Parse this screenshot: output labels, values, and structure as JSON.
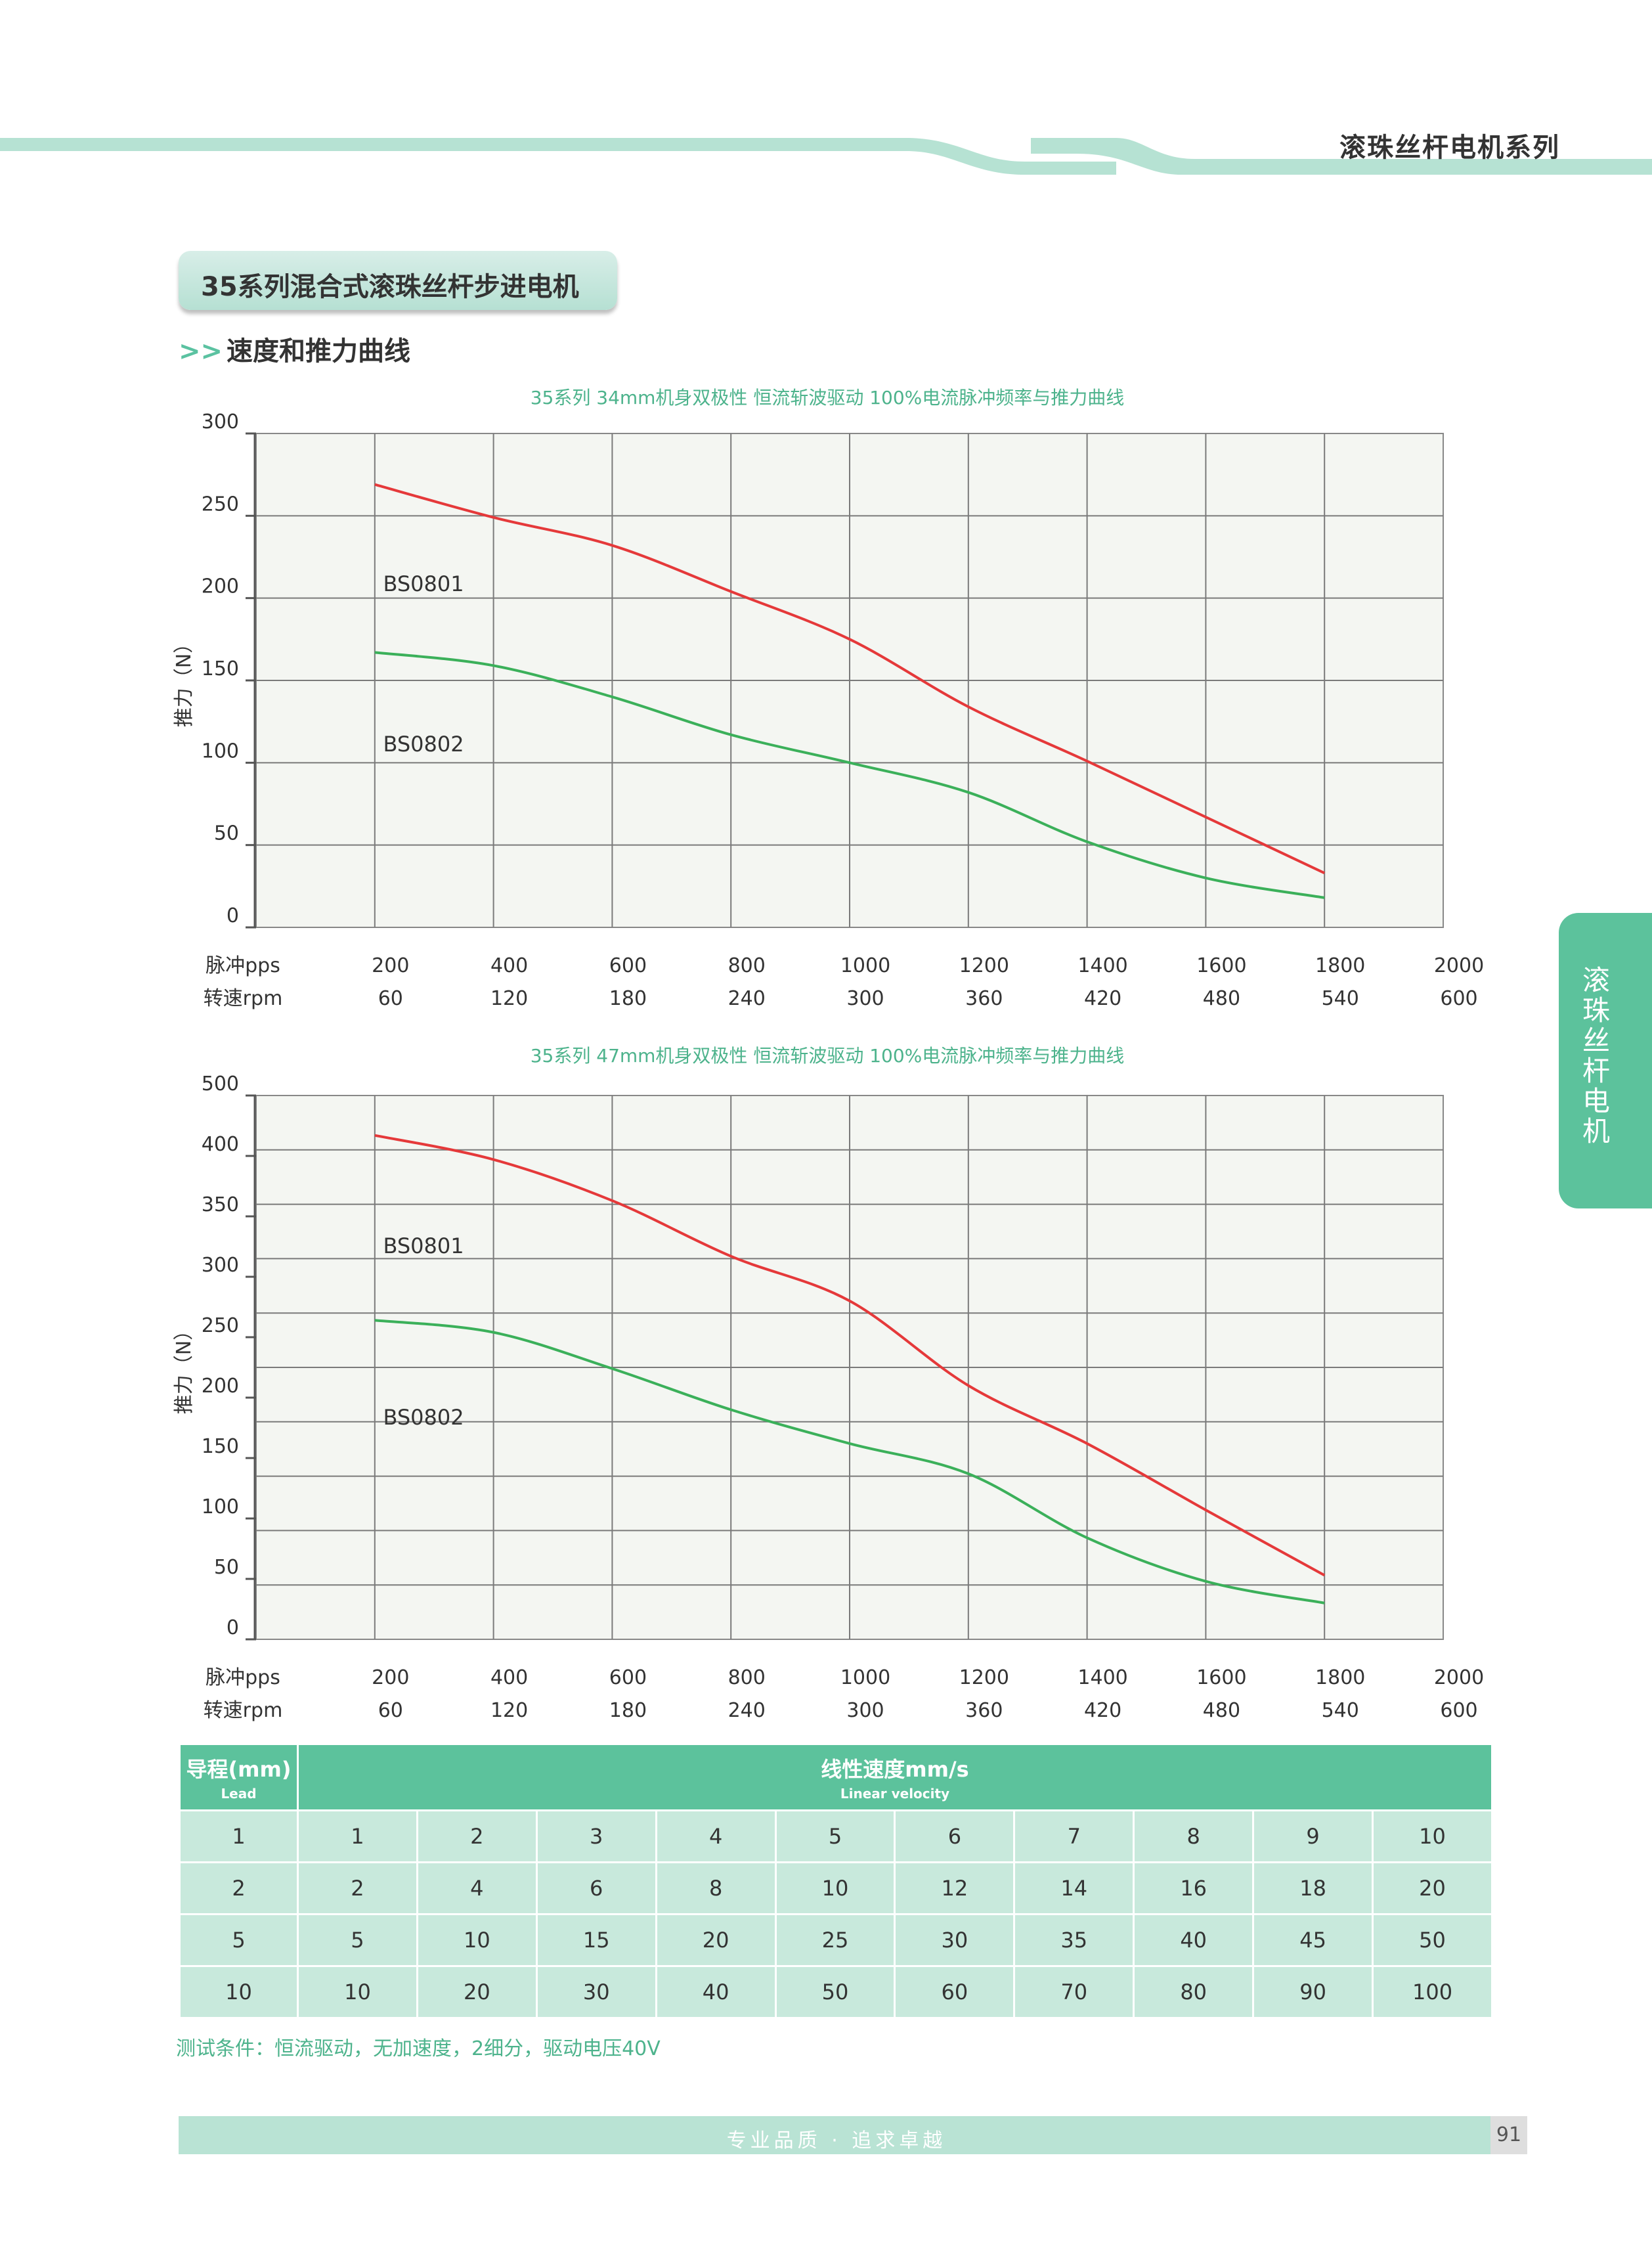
{
  "header": {
    "series_title": "滚珠丝杆电机系列"
  },
  "section": {
    "title": "35系列混合式滚珠丝杆步进电机",
    "subtitle_arrows": ">>",
    "subtitle": "速度和推力曲线"
  },
  "side_tab": {
    "label": "滚珠丝杆电机"
  },
  "chart_data": [
    {
      "type": "line",
      "title": "35系列 34mm机身双极性 恒流斩波驱动 100%电流脉冲频率与推力曲线",
      "ylabel": "推力（N）",
      "x_label_pps": "脉冲pps",
      "x_label_rpm": "转速rpm",
      "x_ticks_pps": [
        "200",
        "400",
        "600",
        "800",
        "1000",
        "1200",
        "1400",
        "1600",
        "1800",
        "2000"
      ],
      "x_ticks_rpm": [
        "60",
        "120",
        "180",
        "240",
        "300",
        "360",
        "420",
        "480",
        "540",
        "600"
      ],
      "xlim": [
        0,
        2000
      ],
      "ylim": [
        0,
        300
      ],
      "y_ticks": [
        0,
        50,
        100,
        150,
        200,
        250,
        300
      ],
      "grid": true,
      "series": [
        {
          "name": "BS0801",
          "color": "#e5393a",
          "x": [
            200,
            400,
            600,
            800,
            1000,
            1200,
            1400,
            1600,
            1800
          ],
          "y": [
            269,
            249,
            232,
            204,
            175,
            134,
            101,
            67,
            33
          ]
        },
        {
          "name": "BS0802",
          "color": "#3bb05a",
          "x": [
            200,
            400,
            600,
            800,
            1000,
            1200,
            1400,
            1600,
            1800
          ],
          "y": [
            167,
            159,
            140,
            117,
            100,
            82,
            52,
            30,
            18
          ]
        }
      ]
    },
    {
      "type": "line",
      "title": "35系列 47mm机身双极性 恒流斩波驱动 100%电流脉冲频率与推力曲线",
      "ylabel": "推力（N）",
      "x_label_pps": "脉冲pps",
      "x_label_rpm": "转速rpm",
      "x_ticks_pps": [
        "200",
        "400",
        "600",
        "800",
        "1000",
        "1200",
        "1400",
        "1600",
        "1800",
        "2000"
      ],
      "x_ticks_rpm": [
        "60",
        "120",
        "180",
        "240",
        "300",
        "360",
        "420",
        "480",
        "540",
        "600"
      ],
      "xlim": [
        0,
        2000
      ],
      "ylim": [
        0,
        450
      ],
      "y_ticks": [
        0,
        50,
        100,
        150,
        200,
        250,
        300,
        350,
        400,
        500
      ],
      "grid": true,
      "series": [
        {
          "name": "BS0801",
          "color": "#e5393a",
          "x": [
            200,
            400,
            600,
            800,
            1000,
            1200,
            1400,
            1600,
            1800
          ],
          "y": [
            417,
            397,
            363,
            317,
            280,
            210,
            162,
            107,
            53
          ]
        },
        {
          "name": "BS0802",
          "color": "#3bb05a",
          "x": [
            200,
            400,
            600,
            800,
            1000,
            1200,
            1400,
            1600,
            1800
          ],
          "y": [
            264,
            254,
            224,
            190,
            162,
            137,
            84,
            48,
            30
          ]
        }
      ]
    }
  ],
  "table": {
    "lead_header": "导程(mm)",
    "lead_header_en": "Lead",
    "velocity_header": "线性速度mm/s",
    "velocity_header_en": "Linear velocity",
    "rows": [
      {
        "lead": "1",
        "values": [
          "1",
          "2",
          "3",
          "4",
          "5",
          "6",
          "7",
          "8",
          "9",
          "10"
        ]
      },
      {
        "lead": "2",
        "values": [
          "2",
          "4",
          "6",
          "8",
          "10",
          "12",
          "14",
          "16",
          "18",
          "20"
        ]
      },
      {
        "lead": "5",
        "values": [
          "5",
          "10",
          "15",
          "20",
          "25",
          "30",
          "35",
          "40",
          "45",
          "50"
        ]
      },
      {
        "lead": "10",
        "values": [
          "10",
          "20",
          "30",
          "40",
          "50",
          "60",
          "70",
          "80",
          "90",
          "100"
        ]
      }
    ]
  },
  "note": "测试条件：恒流驱动，无加速度，2细分，驱动电压40V",
  "footer": {
    "slogan": "专业品质 · 追求卓越",
    "page_number": "91"
  }
}
